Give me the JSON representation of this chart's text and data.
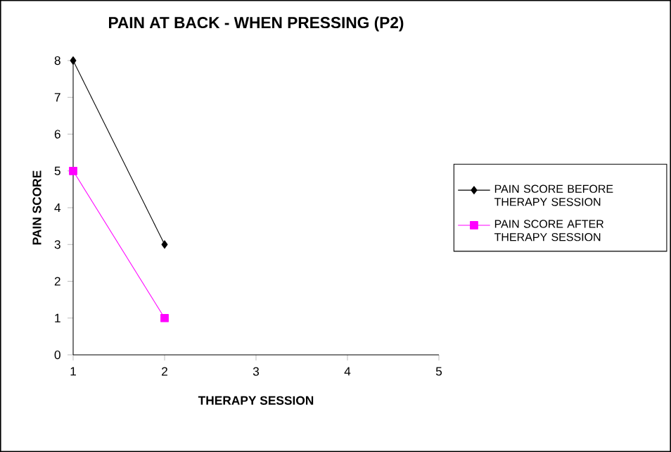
{
  "chart_data": {
    "type": "line",
    "title": "PAIN AT BACK - WHEN PRESSING (P2)",
    "xlabel": "THERAPY SESSION",
    "ylabel": "PAIN SCORE",
    "x": [
      1,
      2
    ],
    "series": [
      {
        "name": "PAIN SCORE BEFORE THERAPY SESSION",
        "color": "#000000",
        "marker": "diamond",
        "values": [
          8,
          3
        ]
      },
      {
        "name": "PAIN SCORE AFTER THERAPY SESSION",
        "color": "#ff00ff",
        "marker": "square",
        "values": [
          5,
          1
        ]
      }
    ],
    "xlim": [
      1,
      5
    ],
    "xticks": [
      1,
      2,
      3,
      4,
      5
    ],
    "ylim": [
      0,
      8
    ],
    "yticks": [
      0,
      1,
      2,
      3,
      4,
      5,
      6,
      7,
      8
    ],
    "grid": false,
    "legend": "right"
  }
}
